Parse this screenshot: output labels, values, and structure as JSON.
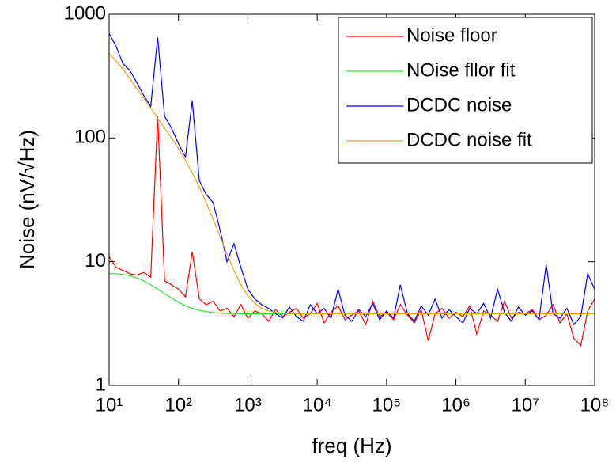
{
  "chart_data": {
    "type": "line",
    "xlabel": "freq (Hz)",
    "ylabel": "Noise (nV/√Hz)",
    "xscale": "log",
    "yscale": "log",
    "xlim": [
      10,
      100000000
    ],
    "ylim": [
      1,
      1000
    ],
    "xticks": [
      {
        "value": 10,
        "label": "10¹"
      },
      {
        "value": 100,
        "label": "10²"
      },
      {
        "value": 1000,
        "label": "10³"
      },
      {
        "value": 10000,
        "label": "10⁴"
      },
      {
        "value": 100000,
        "label": "10⁵"
      },
      {
        "value": 1000000,
        "label": "10⁶"
      },
      {
        "value": 10000000,
        "label": "10⁷"
      },
      {
        "value": 100000000,
        "label": "10⁸"
      }
    ],
    "yticks": [
      1,
      10,
      100,
      1000
    ],
    "grid": false,
    "legend": "upper right",
    "x": [
      10,
      12.6,
      15.8,
      20,
      25.1,
      31.6,
      39.8,
      50.1,
      63.1,
      79.4,
      100,
      126,
      158,
      200,
      251,
      316,
      398,
      501,
      631,
      794,
      1000,
      1260,
      1580,
      2000,
      2510,
      3160,
      3980,
      5010,
      6310,
      7940,
      10000,
      12600,
      15800,
      20000,
      25100,
      31600,
      39800,
      50100,
      63100,
      79400,
      100000,
      126000,
      158000,
      200000,
      251000,
      316000,
      398000,
      501000,
      631000,
      794000,
      1000000,
      1260000,
      1580000,
      2000000,
      2510000,
      3160000,
      3980000,
      5010000,
      6310000,
      7940000,
      10000000,
      12600000,
      15800000,
      20000000,
      25100000,
      31600000,
      39800000,
      50100000,
      63100000,
      79400000,
      100000000
    ],
    "series": [
      {
        "name": "Noise floor",
        "color": "#ff0000",
        "values": [
          11,
          9,
          8.5,
          8,
          7.8,
          8.2,
          7.5,
          150,
          7,
          6.5,
          6,
          5.2,
          12,
          5,
          4.5,
          4.8,
          4,
          4.2,
          3.6,
          4.5,
          3.5,
          4,
          3.8,
          3.3,
          4.1,
          3.6,
          3.9,
          4.2,
          3.5,
          3.8,
          4.6,
          3.2,
          3.9,
          4.4,
          3.4,
          3.7,
          4,
          3.1,
          4.8,
          3.6,
          3.9,
          3.4,
          4.5,
          3.7,
          3.2,
          4.1,
          2.3,
          3.8,
          4.2,
          3.5,
          3.9,
          3.6,
          4.4,
          2.6,
          4,
          3.7,
          3.3,
          4.8,
          3.5,
          3.9,
          3.8,
          4.1,
          3.4,
          3.7,
          4.5,
          3.2,
          3.8,
          2.4,
          2.1,
          4,
          5
        ]
      },
      {
        "name": "NOise fllor fit",
        "color": "#33dd33",
        "values": [
          8,
          8,
          7.9,
          7.7,
          7.4,
          7,
          6.5,
          6,
          5.5,
          5.1,
          4.7,
          4.4,
          4.2,
          4.05,
          3.95,
          3.88,
          3.84,
          3.82,
          3.81,
          3.8,
          3.8,
          3.8,
          3.8,
          3.8,
          3.8,
          3.8,
          3.8,
          3.8,
          3.8,
          3.8,
          3.8,
          3.8,
          3.8,
          3.8,
          3.8,
          3.8,
          3.8,
          3.8,
          3.8,
          3.8,
          3.8,
          3.8,
          3.8,
          3.8,
          3.8,
          3.8,
          3.8,
          3.8,
          3.8,
          3.8,
          3.8,
          3.8,
          3.8,
          3.8,
          3.8,
          3.8,
          3.8,
          3.8,
          3.8,
          3.8,
          3.8,
          3.8,
          3.8,
          3.8,
          3.8,
          3.8,
          3.8,
          3.8,
          3.8,
          3.8,
          3.8
        ]
      },
      {
        "name": "DCDC noise",
        "color": "#0000ff",
        "values": [
          700,
          550,
          400,
          350,
          280,
          220,
          180,
          650,
          150,
          120,
          90,
          70,
          200,
          45,
          35,
          30,
          18,
          10,
          14,
          9,
          6,
          5,
          4.5,
          4.2,
          3.8,
          3.5,
          4.3,
          3.6,
          3.3,
          4.5,
          3.8,
          4.2,
          3.5,
          6,
          3.7,
          3.3,
          4.1,
          3.6,
          4.6,
          3.4,
          4,
          3.5,
          6.5,
          3.8,
          3.3,
          4.4,
          3.7,
          5,
          3.5,
          4.1,
          3.6,
          3.2,
          4.2,
          3.8,
          4.6,
          3.5,
          6,
          3.9,
          3.3,
          4.3,
          3.7,
          4,
          3.4,
          9.5,
          3.8,
          3.5,
          4.2,
          3.1,
          3.6,
          8,
          6
        ]
      },
      {
        "name": "DCDC noise fit",
        "color": "#e8a020",
        "values": [
          480,
          420,
          360,
          300,
          250,
          210,
          175,
          145,
          120,
          100,
          82,
          66,
          52,
          40,
          30,
          22,
          16,
          11.5,
          8.5,
          6.5,
          5.3,
          4.6,
          4.2,
          4,
          3.9,
          3.85,
          3.82,
          3.8,
          3.8,
          3.8,
          3.8,
          3.8,
          3.8,
          3.8,
          3.8,
          3.8,
          3.8,
          3.8,
          3.8,
          3.8,
          3.8,
          3.8,
          3.8,
          3.8,
          3.8,
          3.8,
          3.8,
          3.8,
          3.8,
          3.8,
          3.8,
          3.8,
          3.8,
          3.8,
          3.8,
          3.8,
          3.8,
          3.8,
          3.8,
          3.8,
          3.8,
          3.8,
          3.8,
          3.8,
          3.8,
          3.8,
          3.8,
          3.8,
          3.8,
          3.8,
          3.8
        ]
      }
    ]
  }
}
